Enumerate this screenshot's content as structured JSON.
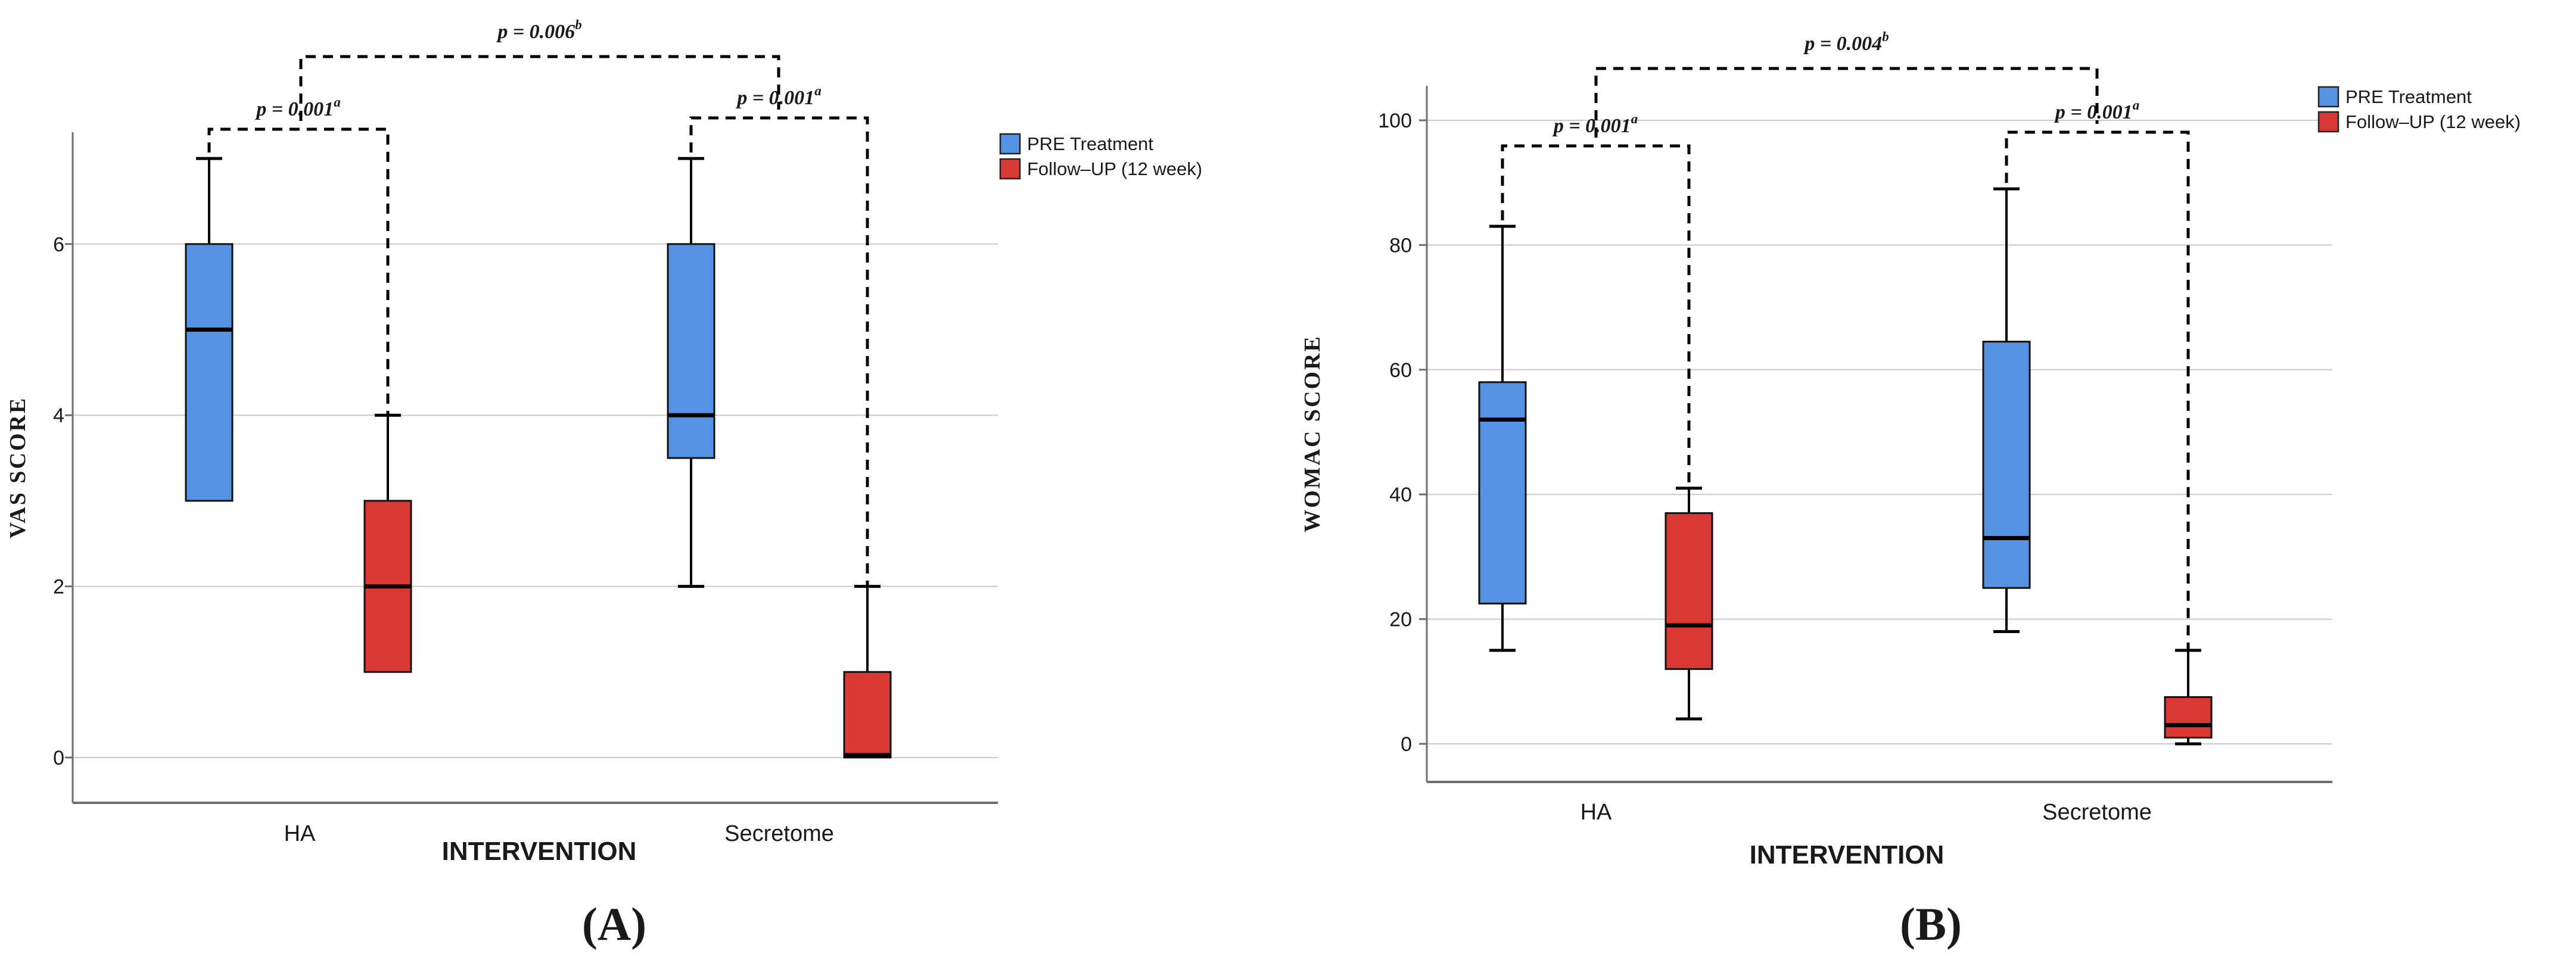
{
  "figure": {
    "background": "#ffffff",
    "styles": {
      "grid_color": "#c9c9c9",
      "axis_color": "#6e6e6e",
      "box_border_color": "#111111",
      "whisker_color": "#000000",
      "median_color": "#000000",
      "annotation_color": "#000000",
      "text_color": "#1a1a1a"
    }
  },
  "chart_data": [
    {
      "type": "box",
      "panel_label": "(A)",
      "xlabel": "INTERVENTION",
      "ylabel": "VAS SCORE",
      "categories": [
        "HA",
        "Secretome"
      ],
      "yticks": [
        0,
        2,
        4,
        6
      ],
      "ylim": [
        -0.55,
        7.3
      ],
      "grid": true,
      "legend_position": "outside-top-right",
      "series": [
        {
          "name": "PRE Treatment",
          "color": "#5592E3",
          "boxes": [
            {
              "category": "HA",
              "min": 3,
              "q1": 3,
              "median": 5,
              "q3": 6,
              "max": 7
            },
            {
              "category": "Secretome",
              "min": 2,
              "q1": 3.5,
              "median": 4,
              "q3": 6,
              "max": 7
            }
          ]
        },
        {
          "name": "Follow–UP (12 week)",
          "color": "#D93934",
          "boxes": [
            {
              "category": "HA",
              "min": 1,
              "q1": 1,
              "median": 2,
              "q3": 3,
              "max": 4
            },
            {
              "category": "Secretome",
              "min": 0,
              "q1": 0,
              "median": 0,
              "q3": 1,
              "max": 2
            }
          ]
        }
      ],
      "annotations": [
        {
          "text": "p = 0.001",
          "sup": "a",
          "connects": [
            "HA PRE Treatment",
            "HA Follow–UP (12 week)"
          ]
        },
        {
          "text": "p = 0.001",
          "sup": "a",
          "connects": [
            "Secretome PRE Treatment",
            "Secretome Follow–UP (12 week)"
          ]
        },
        {
          "text": "p = 0.006",
          "sup": "b",
          "connects": [
            "HA",
            "Secretome"
          ]
        }
      ]
    },
    {
      "type": "box",
      "panel_label": "(B)",
      "xlabel": "INTERVENTION",
      "ylabel": "WOMAC SCORE",
      "categories": [
        "HA",
        "Secretome"
      ],
      "yticks": [
        0,
        20,
        40,
        60,
        80,
        100
      ],
      "ylim": [
        -6,
        105
      ],
      "grid": true,
      "legend_position": "outside-top-right",
      "series": [
        {
          "name": "PRE Treatment",
          "color": "#5592E3",
          "boxes": [
            {
              "category": "HA",
              "min": 15,
              "q1": 22.5,
              "median": 52,
              "q3": 58,
              "max": 83
            },
            {
              "category": "Secretome",
              "min": 18,
              "q1": 25,
              "median": 33,
              "q3": 64.5,
              "max": 89
            }
          ]
        },
        {
          "name": "Follow–UP (12 week)",
          "color": "#D93934",
          "boxes": [
            {
              "category": "HA",
              "min": 4,
              "q1": 12,
              "median": 19,
              "q3": 37,
              "max": 41
            },
            {
              "category": "Secretome",
              "min": 0,
              "q1": 1,
              "median": 3,
              "q3": 7.5,
              "max": 15
            }
          ]
        }
      ],
      "annotations": [
        {
          "text": "p = 0.001",
          "sup": "a",
          "connects": [
            "HA PRE Treatment",
            "HA Follow–UP (12 week)"
          ]
        },
        {
          "text": "p = 0.001",
          "sup": "a",
          "connects": [
            "Secretome PRE Treatment",
            "Secretome Follow–UP (12 week)"
          ]
        },
        {
          "text": "p = 0.004",
          "sup": "b",
          "connects": [
            "HA",
            "Secretome"
          ]
        }
      ]
    }
  ]
}
